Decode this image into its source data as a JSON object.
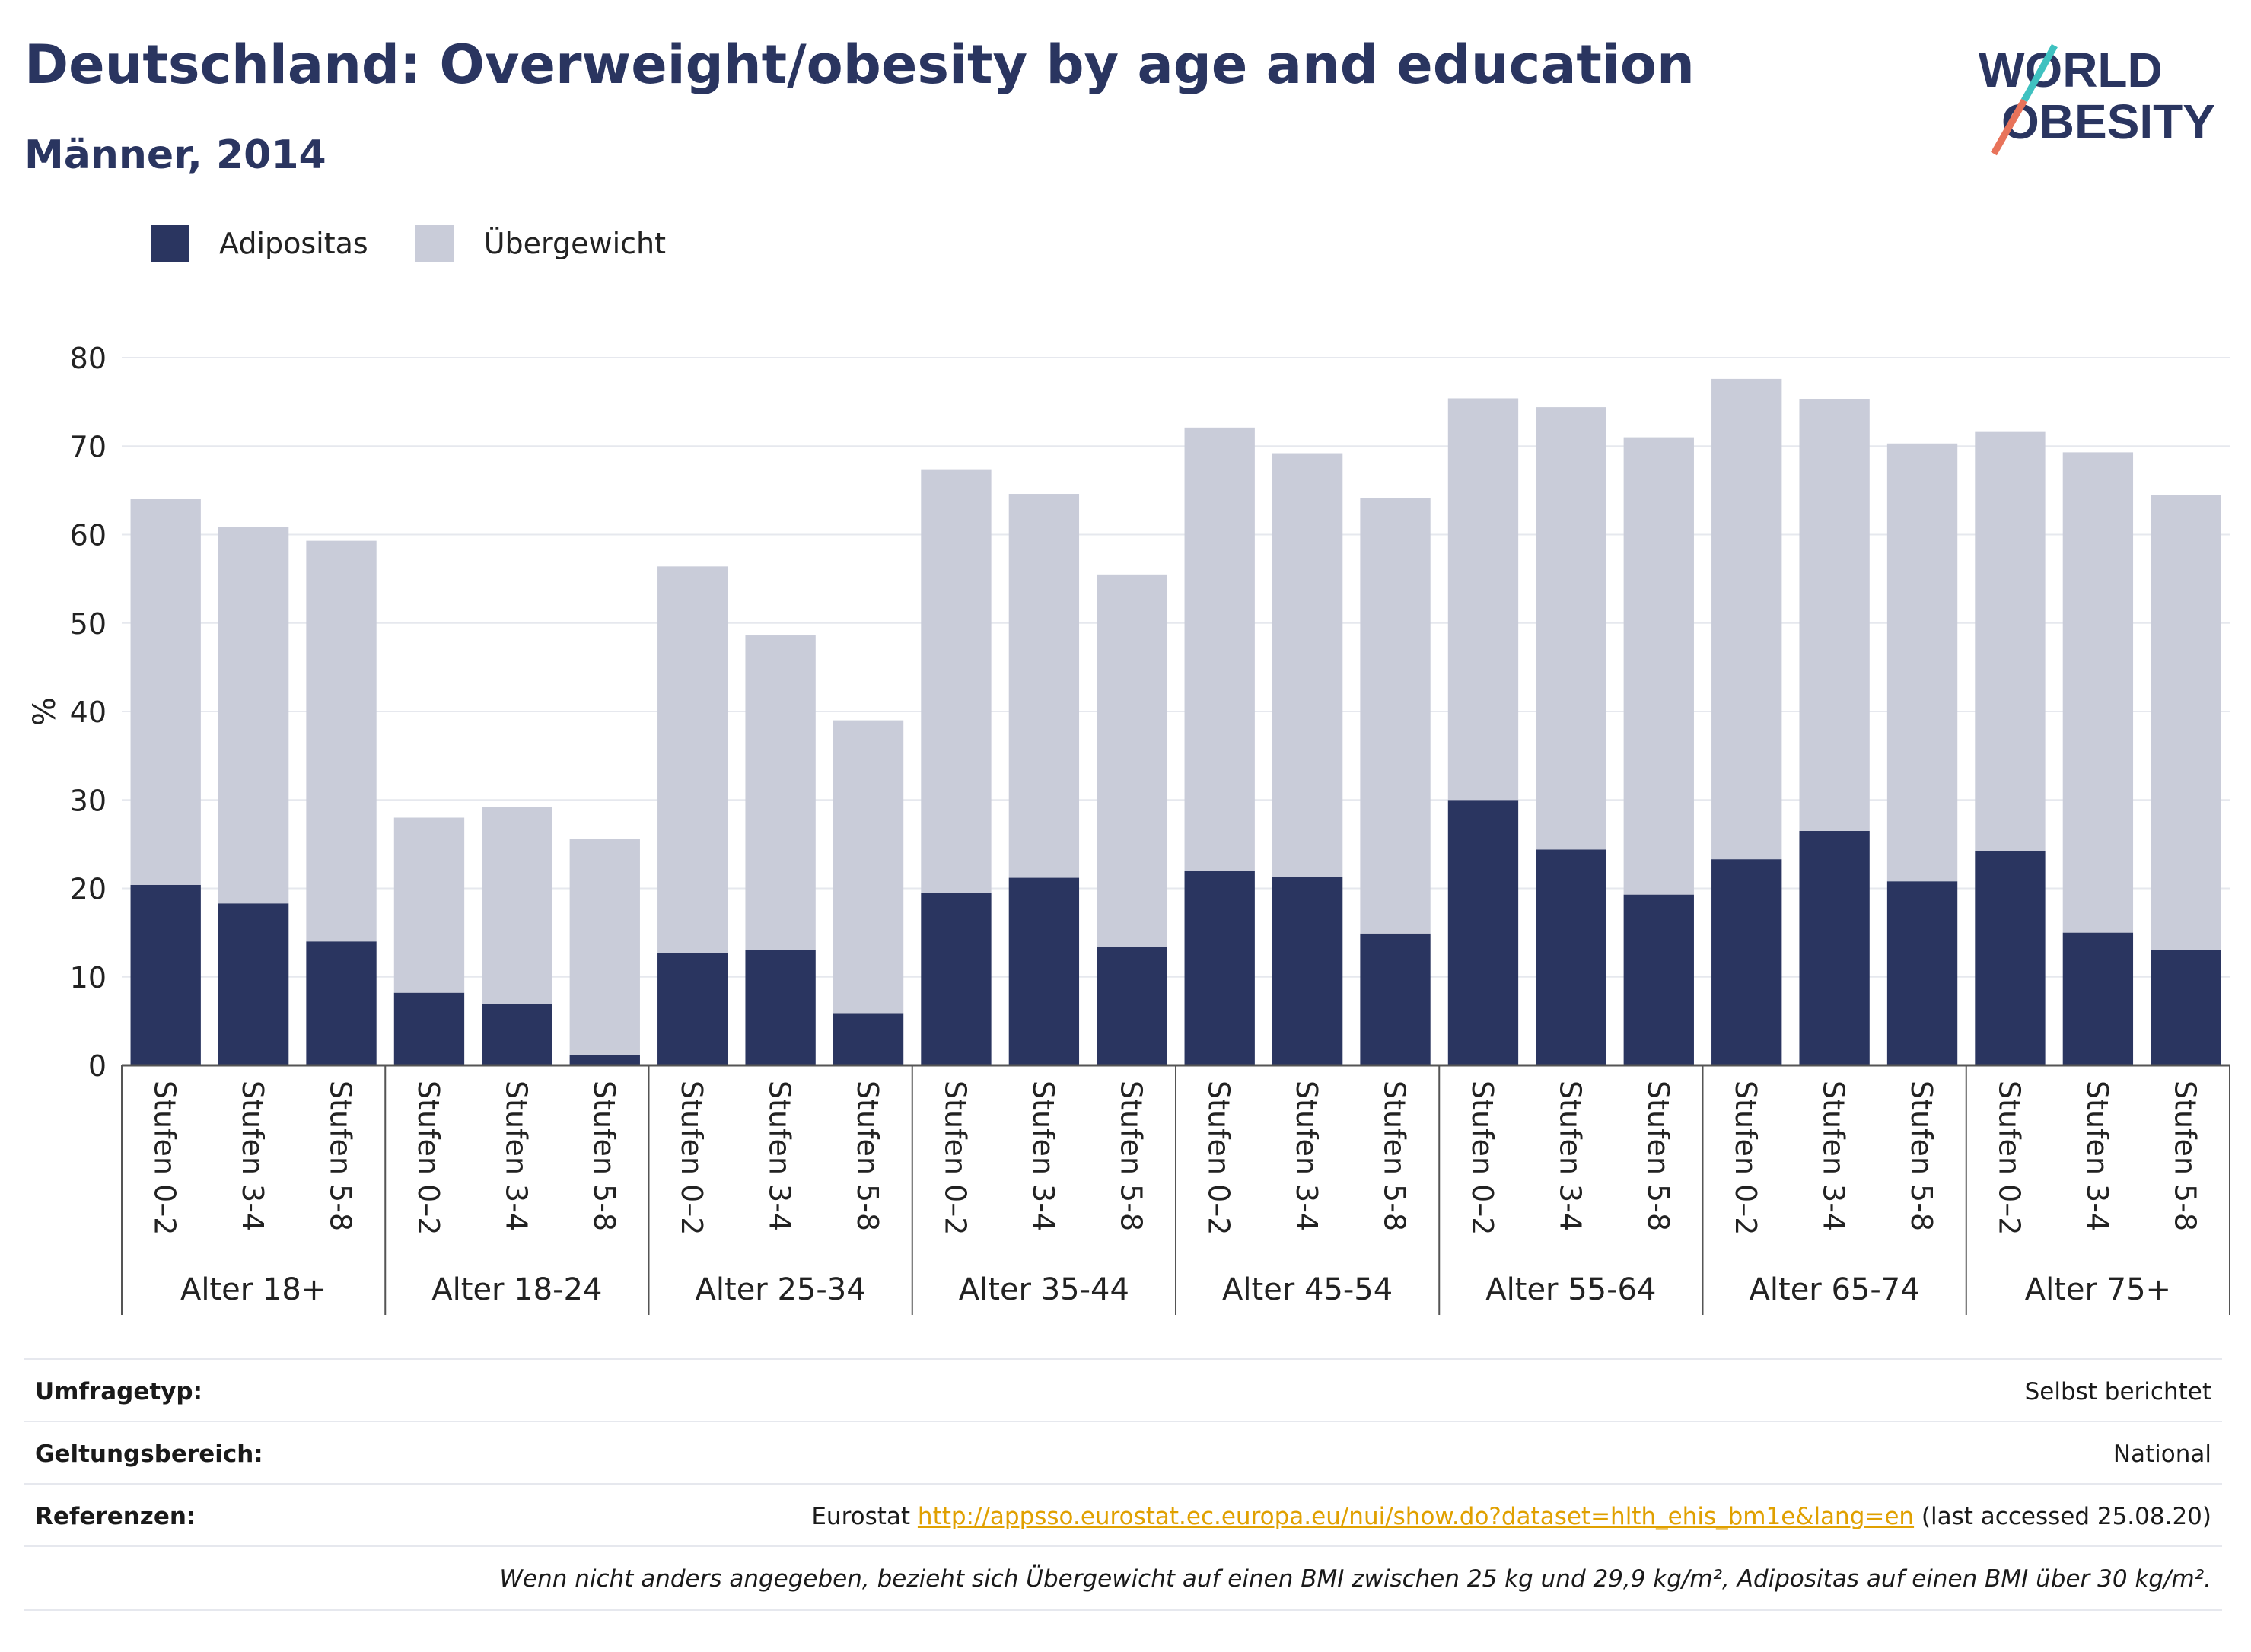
{
  "header": {
    "title": "Deutschland: Overweight/obesity by age and education",
    "subtitle": "Männer, 2014"
  },
  "logo": {
    "line1": "WORLD",
    "line2": "OBESITY"
  },
  "legend": {
    "items": [
      {
        "label": "Adipositas",
        "color": "#2a3560"
      },
      {
        "label": "Übergewicht",
        "color": "#c9ccd9"
      }
    ]
  },
  "chart_data": {
    "type": "bar",
    "stacked": true,
    "ylabel": "%",
    "ylim": [
      0,
      80
    ],
    "yticks": [
      0,
      10,
      20,
      30,
      40,
      50,
      60,
      70,
      80
    ],
    "grid": true,
    "legend_position": "top-left",
    "groups": [
      "Alter 18+",
      "Alter 18-24",
      "Alter 25-34",
      "Alter 35-44",
      "Alter 45-54",
      "Alter 55-64",
      "Alter 65-74",
      "Alter 75+"
    ],
    "subcategories": [
      "Stufen 0–2",
      "Stufen 3-4",
      "Stufen 5-8"
    ],
    "series": [
      {
        "name": "Adipositas",
        "color": "#2a3560",
        "values": [
          20.4,
          18.3,
          14.0,
          8.2,
          6.9,
          1.2,
          12.7,
          13.0,
          5.9,
          19.5,
          21.2,
          13.4,
          22.0,
          21.3,
          14.9,
          30.0,
          24.4,
          19.3,
          23.3,
          26.5,
          20.8,
          24.2,
          15.0,
          13.0
        ]
      },
      {
        "name": "Übergewicht",
        "color": "#c9ccd9",
        "values": [
          43.6,
          42.6,
          45.3,
          19.8,
          22.3,
          24.4,
          43.7,
          35.6,
          33.1,
          47.8,
          43.4,
          42.1,
          50.1,
          47.9,
          49.2,
          45.4,
          50.0,
          51.7,
          54.3,
          48.8,
          49.5,
          47.4,
          54.3,
          51.5
        ]
      }
    ]
  },
  "meta": {
    "rows": [
      {
        "key": "Umfragetyp:",
        "value": "Selbst berichtet"
      },
      {
        "key": "Geltungsbereich:",
        "value": "National"
      },
      {
        "key": "Referenzen:",
        "value_prefix": "Eurostat ",
        "link": "http://appsso.eurostat.ec.europa.eu/nui/show.do?dataset=hlth_ehis_bm1e&lang=en",
        "value_suffix": " (last accessed 25.08.20)"
      }
    ],
    "note": "Wenn nicht anders angegeben, bezieht sich Übergewicht auf einen BMI zwischen 25 kg und 29,9 kg/m², Adipositas auf einen BMI über 30 kg/m²."
  }
}
